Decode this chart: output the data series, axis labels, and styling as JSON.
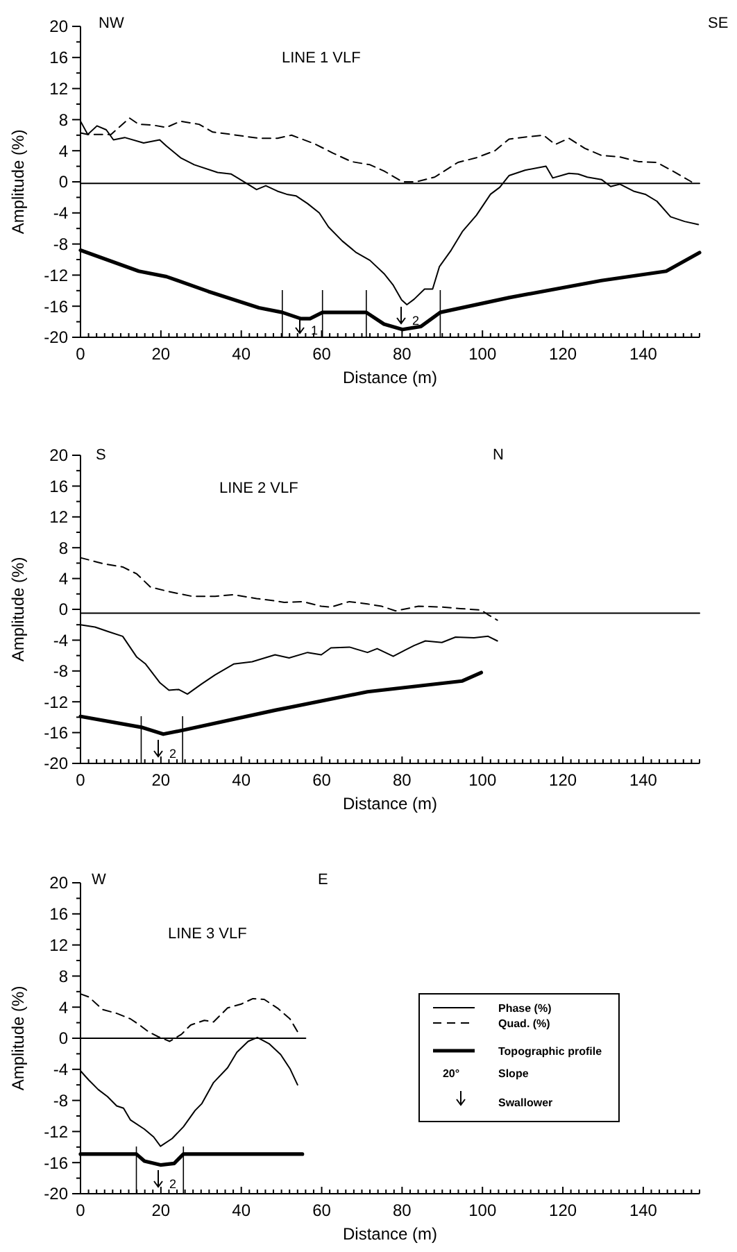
{
  "chart_data": [
    {
      "type": "line",
      "title": "LINE 1 VLF",
      "xlabel": "Distance (m)",
      "ylabel": "Amplitude (%)",
      "xlim": [
        0,
        154
      ],
      "ylim": [
        -20,
        20
      ],
      "xticks": [
        0,
        {
          "value": 2,
          "label": null
        },
        {
          "value": 4,
          "label": null
        },
        {
          "value": 6,
          "label": null
        },
        {
          "value": 8,
          "label": null
        },
        {
          "value": 10,
          "label": null
        },
        {
          "value": 12,
          "label": null
        },
        {
          "value": 14,
          "label": null
        },
        {
          "value": 16,
          "label": null
        },
        {
          "value": 18,
          "label": null
        },
        20,
        {
          "value": 22,
          "label": null
        },
        {
          "value": 24,
          "label": null
        },
        {
          "value": 26,
          "label": null
        },
        {
          "value": 28,
          "label": null
        },
        {
          "value": 30,
          "label": null
        },
        {
          "value": 32,
          "label": null
        },
        {
          "value": 34,
          "label": null
        },
        {
          "value": 36,
          "label": null
        },
        {
          "value": 38,
          "label": null
        },
        40,
        {
          "value": 42,
          "label": null
        },
        {
          "value": 44,
          "label": null
        },
        {
          "value": 46,
          "label": null
        },
        {
          "value": 48,
          "label": null
        },
        {
          "value": 50,
          "label": null
        },
        {
          "value": 52,
          "label": null
        },
        {
          "value": 54,
          "label": null
        },
        {
          "value": 56,
          "label": null
        },
        {
          "value": 58,
          "label": null
        },
        60,
        {
          "value": 62,
          "label": null
        },
        {
          "value": 64,
          "label": null
        },
        {
          "value": 66,
          "label": null
        },
        {
          "value": 68,
          "label": null
        },
        {
          "value": 70,
          "label": null
        },
        {
          "value": 72,
          "label": null
        },
        {
          "value": 74,
          "label": null
        },
        {
          "value": 76,
          "label": null
        },
        {
          "value": 78,
          "label": null
        },
        80,
        {
          "value": 82,
          "label": null
        },
        {
          "value": 84,
          "label": null
        },
        {
          "value": 86,
          "label": null
        },
        {
          "value": 88,
          "label": null
        },
        {
          "value": 90,
          "label": null
        },
        {
          "value": 92,
          "label": null
        },
        {
          "value": 94,
          "label": null
        },
        {
          "value": 96,
          "label": null
        },
        {
          "value": 98,
          "label": null
        },
        100,
        {
          "value": 102,
          "label": null
        },
        {
          "value": 104,
          "label": null
        },
        {
          "value": 106,
          "label": null
        },
        {
          "value": 108,
          "label": null
        },
        {
          "value": 110,
          "label": null
        },
        {
          "value": 112,
          "label": null
        },
        {
          "value": 114,
          "label": null
        },
        {
          "value": 116,
          "label": null
        },
        {
          "value": 118,
          "label": null
        },
        120,
        {
          "value": 122,
          "label": null
        },
        {
          "value": 124,
          "label": null
        },
        {
          "value": 126,
          "label": null
        },
        {
          "value": 128,
          "label": null
        },
        {
          "value": 130,
          "label": null
        },
        {
          "value": 132,
          "label": null
        },
        {
          "value": 134,
          "label": null
        },
        {
          "value": 136,
          "label": null
        },
        {
          "value": 138,
          "label": null
        },
        140,
        {
          "value": 142,
          "label": null
        },
        {
          "value": 144,
          "label": null
        },
        {
          "value": 146,
          "label": null
        },
        {
          "value": 148,
          "label": null
        },
        {
          "value": 150,
          "label": null
        },
        {
          "value": 152,
          "label": null
        },
        {
          "value": 154,
          "label": null
        }
      ],
      "yticks": [
        -20,
        {
          "value": -18,
          "label": null
        },
        -16,
        {
          "value": -14,
          "label": null
        },
        -12,
        {
          "value": -10,
          "label": null
        },
        -8,
        {
          "value": -6,
          "label": null
        },
        -4,
        {
          "value": -2,
          "label": null
        },
        0,
        {
          "value": 2,
          "label": null
        },
        4,
        {
          "value": 6,
          "label": null
        },
        8,
        {
          "value": 10,
          "label": null
        },
        12,
        {
          "value": 14,
          "label": null
        },
        16,
        {
          "value": 18,
          "label": null
        },
        20
      ],
      "series": [
        {
          "color": "#000000",
          "line_style": "solid",
          "x": [
            0,
            1.8,
            4.1,
            6.4,
            8.2,
            11,
            15.7,
            19.7,
            21.4,
            24.9,
            28.3,
            34.1,
            37.5,
            41,
            43.8,
            46.1,
            49,
            51.3,
            53.6,
            56.5,
            59.4,
            61.7,
            65.1,
            68.6,
            72,
            75.5,
            77.8,
            79.9,
            81.2,
            83,
            85.6,
            87.6,
            89.3,
            92.2,
            95,
            98.5,
            102,
            104.3,
            106.6,
            110.6,
            115.8,
            117.5,
            121.5,
            123.8,
            126.1,
            129.6,
            131.9,
            134.2,
            137.6,
            140.5,
            143.4,
            146.8,
            150.3,
            153.7
          ],
          "values": [
            7.8,
            6.1,
            7.2,
            6.7,
            5.4,
            5.7,
            5.0,
            5.4,
            4.6,
            3.1,
            2.2,
            1.2,
            1.0,
            -0.1,
            -1.0,
            -0.5,
            -1.2,
            -1.6,
            -1.8,
            -2.8,
            -4.0,
            -5.8,
            -7.6,
            -9.1,
            -10.1,
            -11.8,
            -13.3,
            -15.2,
            -15.8,
            -15.1,
            -13.8,
            -13.8,
            -10.9,
            -8.8,
            -6.4,
            -4.3,
            -1.6,
            -0.7,
            0.8,
            1.5,
            2.0,
            0.5,
            1.1,
            1.0,
            0.6,
            0.3,
            -0.6,
            -0.3,
            -1.2,
            -1.6,
            -2.5,
            -4.5,
            -5.1,
            -5.5
          ]
        },
        {
          "color": "#000000",
          "line_style": "dashed",
          "x": [
            0,
            1.8,
            7.6,
            12.2,
            14.5,
            18,
            21.4,
            24.9,
            29.5,
            32.9,
            37.5,
            44.4,
            49,
            52.5,
            58.2,
            62.8,
            67.4,
            72,
            75.5,
            80.1,
            83.5,
            88.1,
            93.9,
            98.5,
            103.1,
            106.6,
            111.2,
            115.2,
            118.1,
            121.5,
            125.5,
            129.6,
            134.2,
            138.8,
            143.4,
            148,
            152
          ],
          "values": [
            6.3,
            6.1,
            6.1,
            8.2,
            7.4,
            7.3,
            7,
            7.8,
            7.4,
            6.4,
            6.1,
            5.6,
            5.6,
            6,
            4.9,
            3.7,
            2.6,
            2.2,
            1.4,
            0,
            0,
            0.6,
            2.5,
            3.1,
            4,
            5.5,
            5.8,
            6,
            4.8,
            5.6,
            4.3,
            3.4,
            3.2,
            2.6,
            2.5,
            1.2,
            0
          ]
        },
        {
          "color": "#000000",
          "line_style": "solid",
          "x": [
            0,
            14.5,
            21.4,
            31.8,
            44.4,
            50.2,
            54.8,
            57.1,
            60.2,
            71.1,
            75.5,
            80.1,
            84.7,
            89.5,
            106.6,
            129.6,
            145.7,
            154
          ],
          "values": [
            -8.8,
            -11.5,
            -12.2,
            -14.1,
            -16.2,
            -16.8,
            -17.6,
            -17.6,
            -16.8,
            -16.8,
            -18.3,
            -19.0,
            -18.6,
            -16.8,
            -14.9,
            -12.7,
            -11.5,
            -9.1
          ]
        },
        {
          "color": "#000000",
          "line_style": "solid",
          "x": [
            0,
            154
          ],
          "values": [
            -0.2,
            -0.2
          ]
        }
      ],
      "ref_lines": [
        {
          "axis": "x",
          "value": 50.2
        },
        {
          "axis": "x",
          "value": 60.2
        },
        {
          "axis": "x",
          "value": 71.1
        },
        {
          "axis": "x",
          "value": 89.5
        }
      ],
      "annotations": [
        "NW",
        "SE",
        "1",
        "2"
      ]
    },
    {
      "type": "line",
      "title": "LINE 2 VLF",
      "xlabel": "Distance (m)",
      "ylabel": "Amplitude (%)",
      "xlim": [
        0,
        154
      ],
      "ylim": [
        -20,
        20
      ],
      "xticks": [
        0,
        {
          "value": 2,
          "label": null
        },
        {
          "value": 4,
          "label": null
        },
        {
          "value": 6,
          "label": null
        },
        {
          "value": 8,
          "label": null
        },
        {
          "value": 10,
          "label": null
        },
        {
          "value": 12,
          "label": null
        },
        {
          "value": 14,
          "label": null
        },
        {
          "value": 16,
          "label": null
        },
        {
          "value": 18,
          "label": null
        },
        20,
        {
          "value": 22,
          "label": null
        },
        {
          "value": 24,
          "label": null
        },
        {
          "value": 26,
          "label": null
        },
        {
          "value": 28,
          "label": null
        },
        {
          "value": 30,
          "label": null
        },
        {
          "value": 32,
          "label": null
        },
        {
          "value": 34,
          "label": null
        },
        {
          "value": 36,
          "label": null
        },
        {
          "value": 38,
          "label": null
        },
        40,
        {
          "value": 42,
          "label": null
        },
        {
          "value": 44,
          "label": null
        },
        {
          "value": 46,
          "label": null
        },
        {
          "value": 48,
          "label": null
        },
        {
          "value": 50,
          "label": null
        },
        {
          "value": 52,
          "label": null
        },
        {
          "value": 54,
          "label": null
        },
        {
          "value": 56,
          "label": null
        },
        {
          "value": 58,
          "label": null
        },
        60,
        {
          "value": 62,
          "label": null
        },
        {
          "value": 64,
          "label": null
        },
        {
          "value": 66,
          "label": null
        },
        {
          "value": 68,
          "label": null
        },
        {
          "value": 70,
          "label": null
        },
        {
          "value": 72,
          "label": null
        },
        {
          "value": 74,
          "label": null
        },
        {
          "value": 76,
          "label": null
        },
        {
          "value": 78,
          "label": null
        },
        80,
        {
          "value": 82,
          "label": null
        },
        {
          "value": 84,
          "label": null
        },
        {
          "value": 86,
          "label": null
        },
        {
          "value": 88,
          "label": null
        },
        {
          "value": 90,
          "label": null
        },
        {
          "value": 92,
          "label": null
        },
        {
          "value": 94,
          "label": null
        },
        {
          "value": 96,
          "label": null
        },
        {
          "value": 98,
          "label": null
        },
        100,
        {
          "value": 102,
          "label": null
        },
        {
          "value": 104,
          "label": null
        },
        {
          "value": 106,
          "label": null
        },
        {
          "value": 108,
          "label": null
        },
        {
          "value": 110,
          "label": null
        },
        {
          "value": 112,
          "label": null
        },
        {
          "value": 114,
          "label": null
        },
        {
          "value": 116,
          "label": null
        },
        {
          "value": 118,
          "label": null
        },
        120,
        {
          "value": 122,
          "label": null
        },
        {
          "value": 124,
          "label": null
        },
        {
          "value": 126,
          "label": null
        },
        {
          "value": 128,
          "label": null
        },
        {
          "value": 130,
          "label": null
        },
        {
          "value": 132,
          "label": null
        },
        {
          "value": 134,
          "label": null
        },
        {
          "value": 136,
          "label": null
        },
        {
          "value": 138,
          "label": null
        },
        140,
        {
          "value": 142,
          "label": null
        },
        {
          "value": 144,
          "label": null
        },
        {
          "value": 146,
          "label": null
        },
        {
          "value": 148,
          "label": null
        },
        {
          "value": 150,
          "label": null
        },
        {
          "value": 152,
          "label": null
        },
        {
          "value": 154,
          "label": null
        }
      ],
      "yticks": [
        -20,
        {
          "value": -18,
          "label": null
        },
        -16,
        {
          "value": -14,
          "label": null
        },
        -12,
        {
          "value": -10,
          "label": null
        },
        -8,
        {
          "value": -6,
          "label": null
        },
        -4,
        {
          "value": -2,
          "label": null
        },
        0,
        {
          "value": 2,
          "label": null
        },
        4,
        {
          "value": 6,
          "label": null
        },
        8,
        {
          "value": 10,
          "label": null
        },
        12,
        {
          "value": 14,
          "label": null
        },
        16,
        {
          "value": 18,
          "label": null
        },
        20
      ],
      "series": [
        {
          "color": "#000000",
          "line_style": "solid",
          "x": [
            0,
            3.6,
            7,
            10.5,
            14,
            16.2,
            19.7,
            22,
            24.4,
            26.6,
            30.1,
            33.5,
            38.1,
            42.7,
            48.4,
            51.9,
            56.5,
            59.9,
            62.3,
            66.9,
            71.4,
            73.8,
            77.8,
            80.7,
            83,
            85.8,
            89.9,
            93.3,
            97.9,
            101.4,
            103.7
          ],
          "values": [
            -2.0,
            -2.3,
            -2.9,
            -3.5,
            -6.2,
            -7.1,
            -9.5,
            -10.5,
            -10.4,
            -11,
            -9.7,
            -8.5,
            -7.1,
            -6.8,
            -5.9,
            -6.3,
            -5.6,
            -5.9,
            -5.0,
            -4.9,
            -5.6,
            -5.1,
            -6.1,
            -5.3,
            -4.7,
            -4.1,
            -4.3,
            -3.6,
            -3.7,
            -3.5,
            -4.1
          ]
        },
        {
          "color": "#000000",
          "line_style": "dashed",
          "x": [
            0,
            5.9,
            10.5,
            14,
            17.4,
            22,
            27.7,
            33.5,
            38.1,
            43.8,
            48.4,
            50.7,
            55.3,
            59.9,
            62.3,
            66.9,
            71.4,
            74.9,
            78.4,
            84.1,
            89.9,
            94.5,
            99.7,
            101.4,
            103.7
          ],
          "values": [
            6.7,
            5.9,
            5.5,
            4.6,
            2.9,
            2.3,
            1.7,
            1.7,
            1.9,
            1.4,
            1.1,
            0.9,
            1.0,
            0.4,
            0.3,
            1.0,
            0.7,
            0.4,
            -0.2,
            0.4,
            0.3,
            0.1,
            -0.1,
            -0.7,
            -1.4
          ]
        },
        {
          "color": "#000000",
          "line_style": "solid",
          "x": [
            0,
            15.1,
            20.6,
            25.4,
            48.4,
            71.4,
            95,
            99.7
          ],
          "values": [
            -13.9,
            -15.3,
            -16.2,
            -15.7,
            -13.1,
            -10.7,
            -9.3,
            -8.2
          ]
        },
        {
          "color": "#000000",
          "line_style": "solid",
          "x": [
            0,
            154
          ],
          "values": [
            -0.5,
            -0.5
          ]
        }
      ],
      "ref_lines": [
        {
          "axis": "x",
          "value": 15.1
        },
        {
          "axis": "x",
          "value": 25.4
        }
      ],
      "annotations": [
        "S",
        "N",
        "2"
      ]
    },
    {
      "type": "line",
      "title": "LINE 3 VLF",
      "xlabel": "Distance (m)",
      "ylabel": "Amplitude (%)",
      "xlim": [
        0,
        154
      ],
      "ylim": [
        -20,
        20
      ],
      "legend": "right",
      "xticks": [
        0,
        {
          "value": 2,
          "label": null
        },
        {
          "value": 4,
          "label": null
        },
        {
          "value": 6,
          "label": null
        },
        {
          "value": 8,
          "label": null
        },
        {
          "value": 10,
          "label": null
        },
        {
          "value": 12,
          "label": null
        },
        {
          "value": 14,
          "label": null
        },
        {
          "value": 16,
          "label": null
        },
        {
          "value": 18,
          "label": null
        },
        20,
        {
          "value": 22,
          "label": null
        },
        {
          "value": 24,
          "label": null
        },
        {
          "value": 26,
          "label": null
        },
        {
          "value": 28,
          "label": null
        },
        {
          "value": 30,
          "label": null
        },
        {
          "value": 32,
          "label": null
        },
        {
          "value": 34,
          "label": null
        },
        {
          "value": 36,
          "label": null
        },
        {
          "value": 38,
          "label": null
        },
        40,
        {
          "value": 42,
          "label": null
        },
        {
          "value": 44,
          "label": null
        },
        {
          "value": 46,
          "label": null
        },
        {
          "value": 48,
          "label": null
        },
        {
          "value": 50,
          "label": null
        },
        {
          "value": 52,
          "label": null
        },
        {
          "value": 54,
          "label": null
        },
        {
          "value": 56,
          "label": null
        },
        {
          "value": 58,
          "label": null
        },
        60,
        {
          "value": 62,
          "label": null
        },
        {
          "value": 64,
          "label": null
        },
        {
          "value": 66,
          "label": null
        },
        {
          "value": 68,
          "label": null
        },
        {
          "value": 70,
          "label": null
        },
        {
          "value": 72,
          "label": null
        },
        {
          "value": 74,
          "label": null
        },
        {
          "value": 76,
          "label": null
        },
        {
          "value": 78,
          "label": null
        },
        80,
        {
          "value": 82,
          "label": null
        },
        {
          "value": 84,
          "label": null
        },
        {
          "value": 86,
          "label": null
        },
        {
          "value": 88,
          "label": null
        },
        {
          "value": 90,
          "label": null
        },
        {
          "value": 92,
          "label": null
        },
        {
          "value": 94,
          "label": null
        },
        {
          "value": 96,
          "label": null
        },
        {
          "value": 98,
          "label": null
        },
        100,
        {
          "value": 102,
          "label": null
        },
        {
          "value": 104,
          "label": null
        },
        {
          "value": 106,
          "label": null
        },
        {
          "value": 108,
          "label": null
        },
        {
          "value": 110,
          "label": null
        },
        {
          "value": 112,
          "label": null
        },
        {
          "value": 114,
          "label": null
        },
        {
          "value": 116,
          "label": null
        },
        {
          "value": 118,
          "label": null
        },
        120,
        {
          "value": 122,
          "label": null
        },
        {
          "value": 124,
          "label": null
        },
        {
          "value": 126,
          "label": null
        },
        {
          "value": 128,
          "label": null
        },
        {
          "value": 130,
          "label": null
        },
        {
          "value": 132,
          "label": null
        },
        {
          "value": 134,
          "label": null
        },
        {
          "value": 136,
          "label": null
        },
        {
          "value": 138,
          "label": null
        },
        140,
        {
          "value": 142,
          "label": null
        },
        {
          "value": 144,
          "label": null
        },
        {
          "value": 146,
          "label": null
        },
        {
          "value": 148,
          "label": null
        },
        {
          "value": 150,
          "label": null
        },
        {
          "value": 152,
          "label": null
        },
        {
          "value": 154,
          "label": null
        }
      ],
      "yticks": [
        -20,
        {
          "value": -18,
          "label": null
        },
        -16,
        {
          "value": -14,
          "label": null
        },
        -12,
        {
          "value": -10,
          "label": null
        },
        -8,
        {
          "value": -6,
          "label": null
        },
        -4,
        {
          "value": -2,
          "label": null
        },
        0,
        {
          "value": 2,
          "label": null
        },
        4,
        {
          "value": 6,
          "label": null
        },
        8,
        {
          "value": 10,
          "label": null
        },
        12,
        {
          "value": 14,
          "label": null
        },
        16,
        {
          "value": 18,
          "label": null
        },
        20
      ],
      "series": [
        {
          "name": "Phase (%)",
          "color": "#000000",
          "line_style": "solid",
          "x": [
            0,
            2.1,
            4.4,
            6.7,
            9,
            10.7,
            12.4,
            15.9,
            18.2,
            19.9,
            22.8,
            25.6,
            28.5,
            30.2,
            33.1,
            36.6,
            38.9,
            41.7,
            44,
            46.9,
            49.8,
            52.1,
            54
          ],
          "values": [
            -4.2,
            -5.4,
            -6.6,
            -7.5,
            -8.7,
            -9.0,
            -10.5,
            -11.7,
            -12.7,
            -13.9,
            -12.9,
            -11.4,
            -9.3,
            -8.4,
            -5.7,
            -3.8,
            -1.8,
            -0.4,
            0.1,
            -0.7,
            -2.1,
            -3.9,
            -6.0
          ]
        },
        {
          "name": "Quad. (%)",
          "color": "#000000",
          "line_style": "dashed",
          "x": [
            0,
            2.1,
            5.5,
            9,
            12.4,
            14.7,
            17,
            19.3,
            22.2,
            25.1,
            27.4,
            30.8,
            33.1,
            36.6,
            40,
            42.9,
            45.7,
            49.2,
            52.1,
            54.4
          ],
          "values": [
            5.7,
            5.3,
            3.7,
            3.2,
            2.5,
            1.7,
            0.8,
            0.2,
            -0.4,
            0.5,
            1.7,
            2.3,
            2.1,
            3.9,
            4.4,
            5.1,
            5.0,
            3.8,
            2.5,
            0.5
          ]
        },
        {
          "name": "Topographic profile",
          "color": "#000000",
          "line_style": "solid",
          "x": [
            0,
            13.9,
            15.9,
            19.9,
            23.3,
            25.6,
            55.2
          ],
          "values": [
            -14.9,
            -14.9,
            -15.8,
            -16.3,
            -16.1,
            -14.9,
            -14.9
          ]
        },
        {
          "color": "#000000",
          "line_style": "solid",
          "x": [
            0,
            56
          ],
          "values": [
            0,
            0
          ]
        }
      ],
      "ref_lines": [
        {
          "axis": "x",
          "value": 13.9
        },
        {
          "axis": "x",
          "value": 25.6
        }
      ],
      "annotations": [
        "W",
        "E",
        "2",
        "20°",
        "Slope",
        "Swallower"
      ]
    }
  ]
}
